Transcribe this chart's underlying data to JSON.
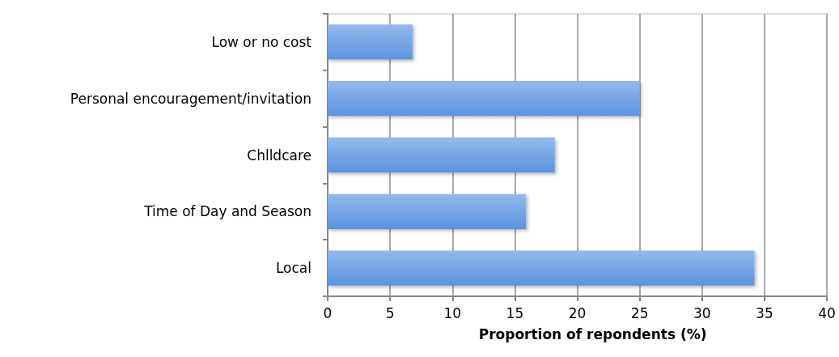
{
  "chart_data": {
    "type": "bar",
    "orientation": "horizontal",
    "categories": [
      "Low or no cost",
      "Personal encouragement/invitation",
      "Chlldcare",
      "Time of Day and Season",
      "Local"
    ],
    "values": [
      6.8,
      25.0,
      18.2,
      15.9,
      34.2
    ],
    "color": "#5b93e0",
    "xlabel": "Proportion of repondents (%)",
    "xlim": [
      0,
      40
    ],
    "xticks": [
      0,
      5,
      10,
      15,
      20,
      25,
      30,
      35,
      40
    ],
    "grid": "x"
  }
}
